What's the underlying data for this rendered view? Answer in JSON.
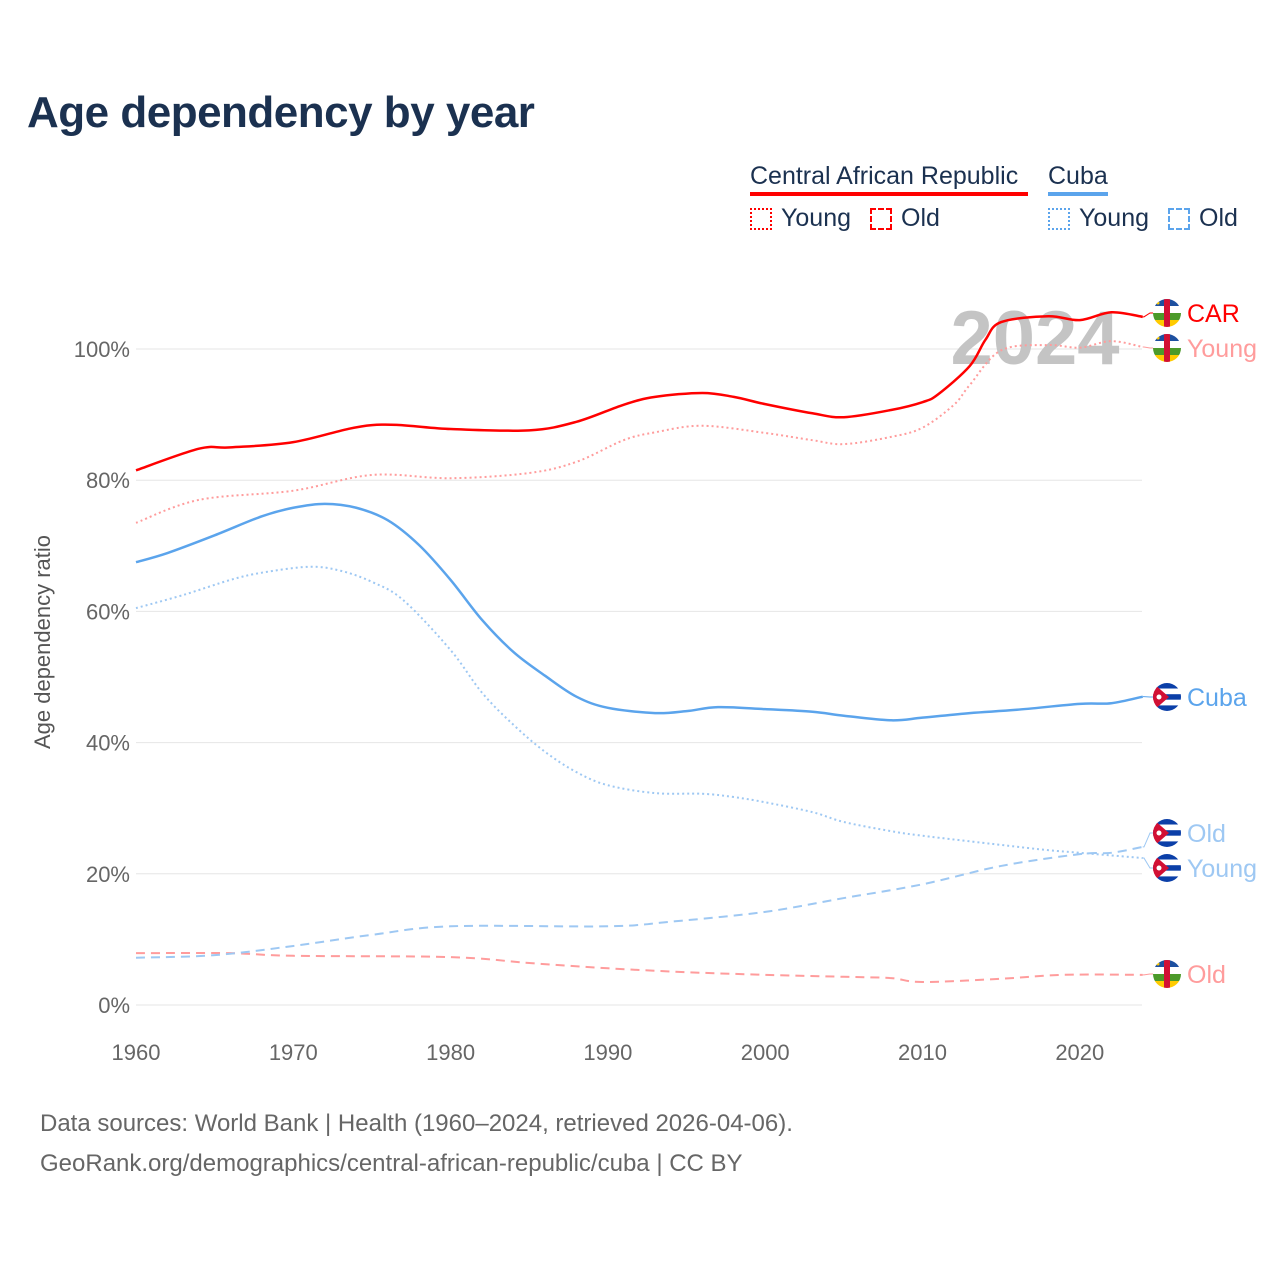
{
  "title": "Age dependency by year",
  "legend": {
    "countries": [
      {
        "name": "Central African Republic",
        "color": "#ff0000"
      },
      {
        "name": "Cuba",
        "color": "#5ba4ec"
      }
    ],
    "young_label": "Young",
    "old_label": "Old"
  },
  "year_watermark": "2024",
  "footer": {
    "line1": "Data sources: World Bank | Health (1960–2024, retrieved 2026-04-06).",
    "line2": "GeoRank.org/demographics/central-african-republic/cuba | CC BY"
  },
  "chart_data": {
    "type": "line",
    "title": "Age dependency by year",
    "xlabel": "",
    "ylabel": "Age dependency ratio",
    "xlim": [
      1960,
      2024
    ],
    "ylim": [
      0,
      100
    ],
    "xticks": [
      "1960",
      "1970",
      "1980",
      "1990",
      "2000",
      "2010",
      "2020"
    ],
    "yticks": [
      "0%",
      "20%",
      "40%",
      "60%",
      "80%",
      "100%"
    ],
    "grid": true,
    "series": [
      {
        "name": "CAR",
        "label": "CAR",
        "country": "Central African Republic",
        "kind": "total",
        "color": "#ff0000",
        "style": "solid",
        "x": [
          1960,
          1964,
          1966,
          1970,
          1975,
          1980,
          1985,
          1988,
          1991,
          1993,
          1996,
          1998,
          2000,
          2003,
          2005,
          2008,
          2010,
          2011,
          2013,
          2014,
          2015,
          2018,
          2020,
          2022,
          2024
        ],
        "y": [
          81.5,
          84.8,
          85,
          85.8,
          88.4,
          87.8,
          87.6,
          88.9,
          91.5,
          92.7,
          93.3,
          92.7,
          91.6,
          90.2,
          89.6,
          90.7,
          91.9,
          93.1,
          97.4,
          101.4,
          104.1,
          105,
          104.4,
          105.6,
          104.9
        ]
      },
      {
        "name": "CAR Young",
        "label": "Young",
        "country": "Central African Republic",
        "kind": "young",
        "color": "#ff9c9c",
        "style": "dotted",
        "x": [
          1960,
          1964,
          1970,
          1975,
          1980,
          1985,
          1988,
          1991,
          1993,
          1996,
          2000,
          2003,
          2005,
          2008,
          2010,
          2012,
          2013,
          2015,
          2018,
          2020,
          2022,
          2024
        ],
        "y": [
          73.5,
          77,
          78.4,
          80.8,
          80.3,
          81.1,
          82.8,
          86.1,
          87.3,
          88.3,
          87.2,
          86.1,
          85.5,
          86.6,
          88,
          91.5,
          94.5,
          99.8,
          100.6,
          100.2,
          101.2,
          100.3
        ]
      },
      {
        "name": "CAR Old",
        "label": "Old",
        "country": "Central African Republic",
        "kind": "old",
        "color": "#ff9c9c",
        "style": "dashed",
        "x": [
          1960,
          1966,
          1970,
          1980,
          1985,
          1990,
          1995,
          2000,
          2005,
          2008,
          2010,
          2015,
          2019,
          2024
        ],
        "y": [
          7.9,
          7.9,
          7.5,
          7.3,
          6.4,
          5.6,
          5.0,
          4.6,
          4.3,
          4.1,
          3.5,
          4.0,
          4.6,
          4.6
        ]
      },
      {
        "name": "Cuba",
        "label": "Cuba",
        "country": "Cuba",
        "kind": "total",
        "color": "#5ba4ec",
        "style": "solid",
        "x": [
          1960,
          1962,
          1965,
          1968,
          1970,
          1972,
          1974,
          1976,
          1978,
          1980,
          1982,
          1984,
          1986,
          1988,
          1990,
          1993,
          1995,
          1997,
          2000,
          2003,
          2005,
          2008,
          2010,
          2013,
          2016,
          2020,
          2022,
          2024
        ],
        "y": [
          67.5,
          68.9,
          71.6,
          74.5,
          75.8,
          76.4,
          75.8,
          73.9,
          70.1,
          64.8,
          58.7,
          53.8,
          50.2,
          47,
          45.3,
          44.5,
          44.8,
          45.4,
          45.1,
          44.7,
          44.1,
          43.4,
          43.8,
          44.5,
          45,
          45.9,
          46.0,
          47
        ]
      },
      {
        "name": "Cuba Young",
        "label": "Young",
        "country": "Cuba",
        "kind": "young",
        "color": "#9ec8f3",
        "style": "dotted",
        "x": [
          1960,
          1963,
          1966,
          1968,
          1971,
          1973,
          1975,
          1977,
          1980,
          1982,
          1984,
          1986,
          1988,
          1990,
          1993,
          1996,
          1998,
          2000,
          2003,
          2005,
          2008,
          2010,
          2015,
          2018,
          2020,
          2024
        ],
        "y": [
          60.5,
          62.5,
          64.8,
          65.9,
          66.8,
          66.2,
          64.5,
          61.7,
          54.1,
          47.6,
          42.7,
          38.6,
          35.5,
          33.5,
          32.3,
          32.2,
          31.7,
          30.9,
          29.4,
          27.9,
          26.5,
          25.8,
          24.4,
          23.6,
          23.2,
          22.4
        ]
      },
      {
        "name": "Cuba Old",
        "label": "Old",
        "country": "Cuba",
        "kind": "old",
        "color": "#9ec8f3",
        "style": "dashed",
        "x": [
          1960,
          1965,
          1970,
          1975,
          1980,
          1990,
          1994,
          2000,
          2005,
          2010,
          2015,
          2020,
          2022,
          2024
        ],
        "y": [
          7.2,
          7.6,
          9.0,
          10.7,
          12.0,
          12.0,
          12.7,
          14.2,
          16.3,
          18.4,
          21.2,
          23.0,
          23.2,
          24.1
        ]
      }
    ]
  }
}
